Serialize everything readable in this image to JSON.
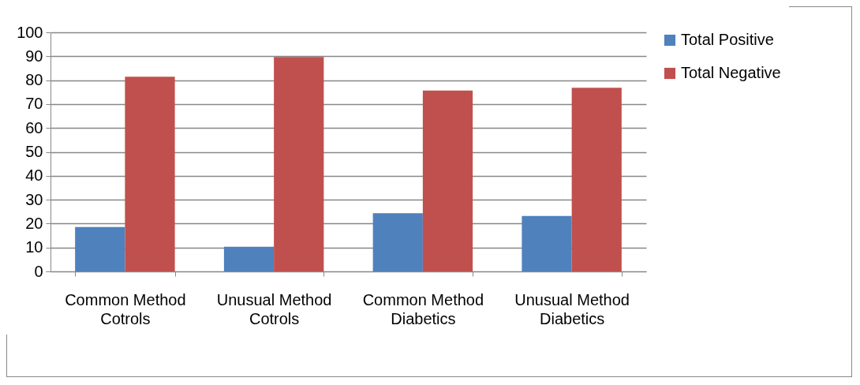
{
  "chart_data": {
    "type": "bar",
    "categories": [
      "Common Method Cotrols",
      "Unusual Method Cotrols",
      "Common Method Diabetics",
      "Unusual Method Diabetics"
    ],
    "series": [
      {
        "name": "Total Positive",
        "color": "#4f81bd",
        "values": [
          18.6,
          10.3,
          24.3,
          23.2
        ]
      },
      {
        "name": "Total Negative",
        "color": "#c0504d",
        "values": [
          81.4,
          89.7,
          75.7,
          76.8
        ]
      }
    ],
    "ylim": [
      0,
      100
    ],
    "yticks": [
      0,
      10,
      20,
      30,
      40,
      50,
      60,
      70,
      80,
      90,
      100
    ],
    "grid": "y",
    "legend": "right"
  }
}
